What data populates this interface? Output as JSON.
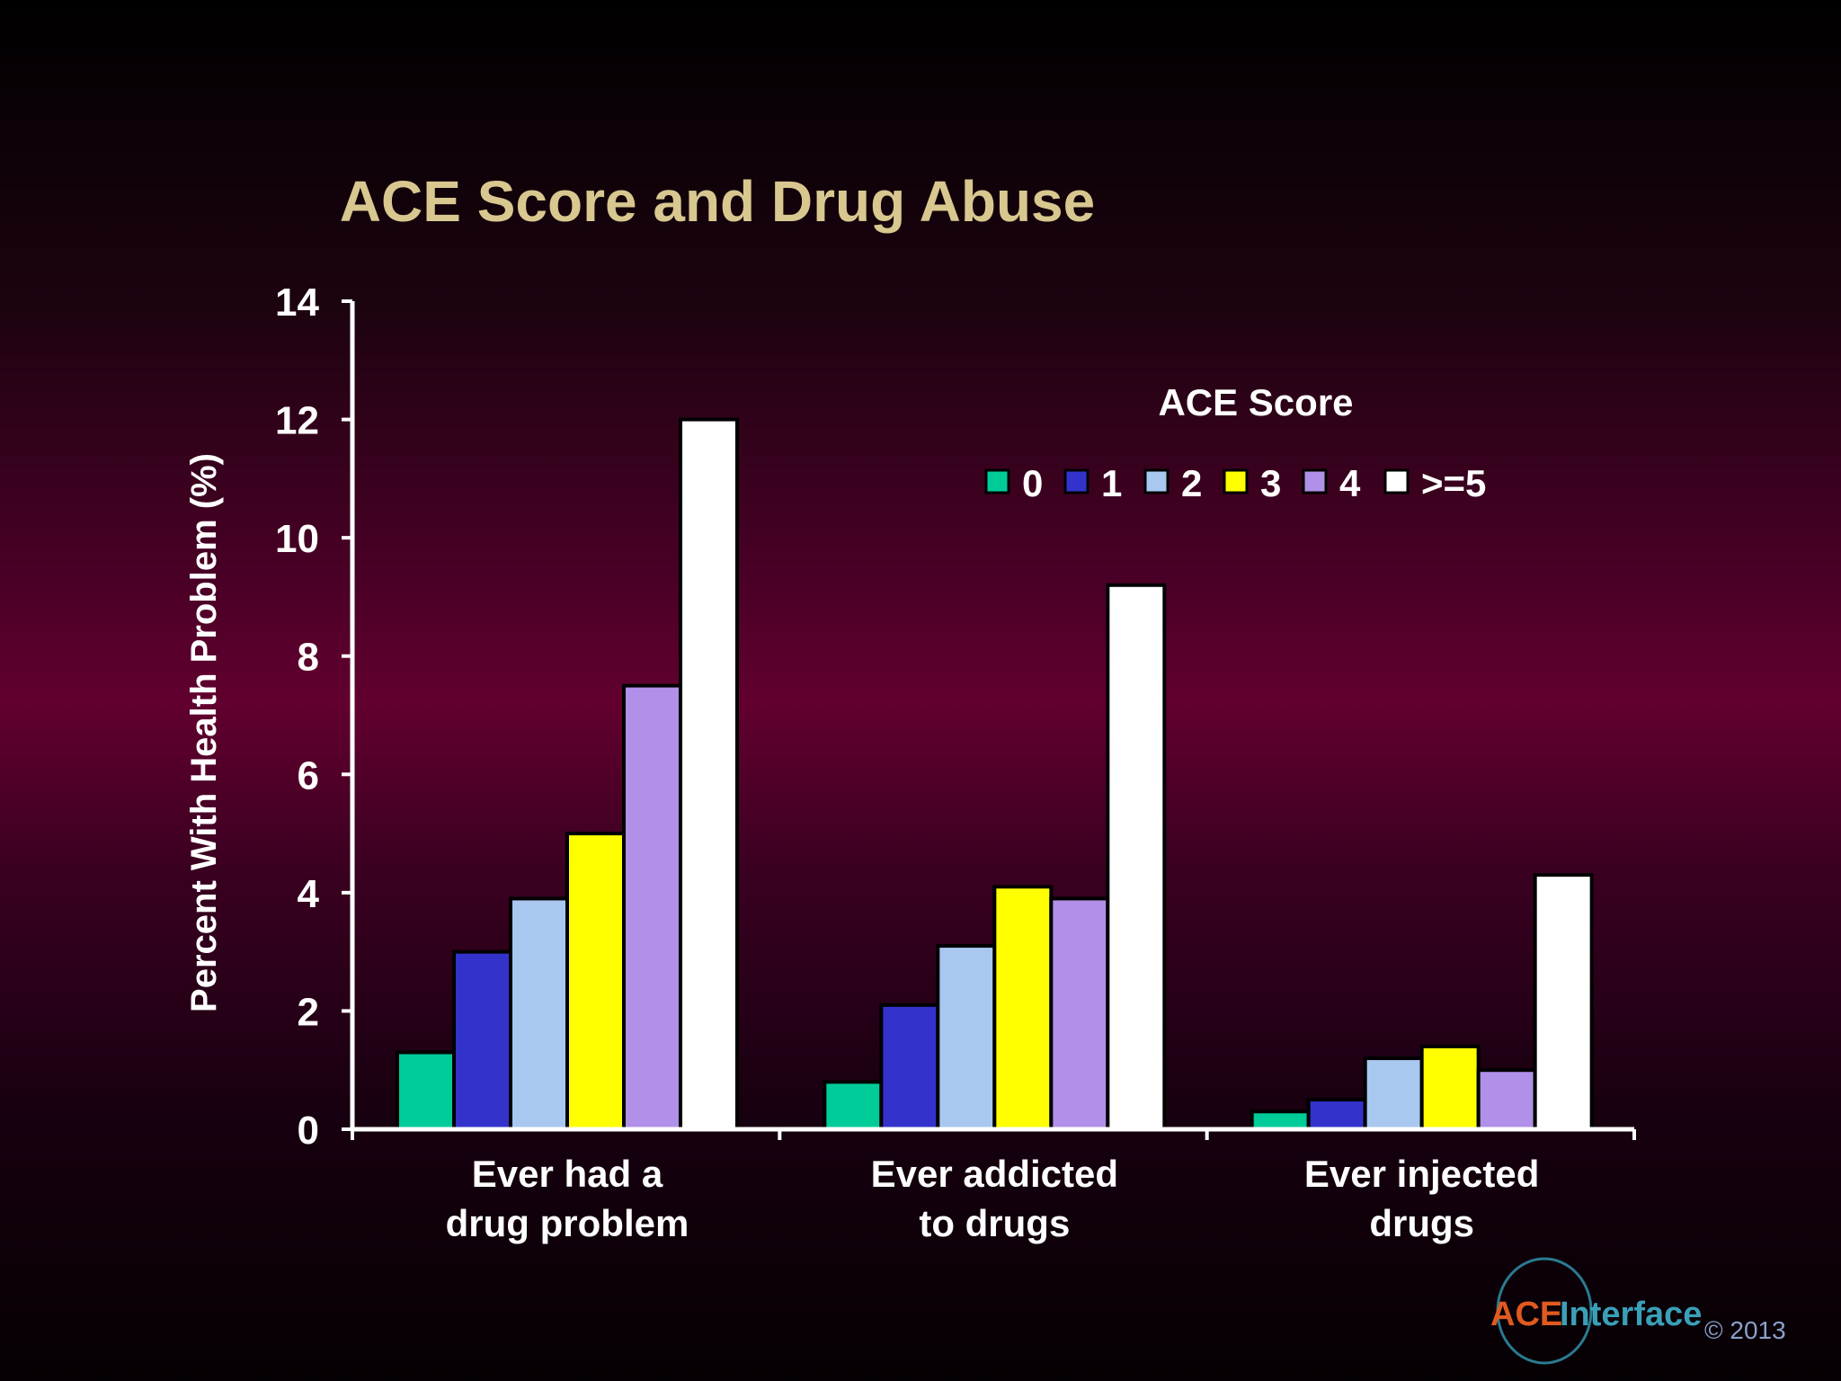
{
  "chart_data": {
    "type": "bar",
    "title": "ACE Score and Drug Abuse",
    "ylabel": "Percent With Health Problem  (%)",
    "xlabel": "",
    "ylim": [
      0,
      14
    ],
    "yticks": [
      "0",
      "2",
      "4",
      "6",
      "8",
      "10",
      "12",
      "14"
    ],
    "categories": [
      [
        "Ever had a",
        "drug problem"
      ],
      [
        "Ever addicted",
        "to drugs"
      ],
      [
        "Ever injected",
        "drugs"
      ]
    ],
    "legend_title": "ACE Score",
    "legend_placement": "top-right",
    "grid": false,
    "series": [
      {
        "name": "0",
        "color": "#00cc99",
        "values": [
          1.3,
          0.8,
          0.3
        ]
      },
      {
        "name": "1",
        "color": "#3333cc",
        "values": [
          3.0,
          2.1,
          0.5
        ]
      },
      {
        "name": "2",
        "color": "#a8c8f0",
        "values": [
          3.9,
          3.1,
          1.2
        ]
      },
      {
        "name": "3",
        "color": "#ffff00",
        "values": [
          5.0,
          4.1,
          1.4
        ]
      },
      {
        "name": "4",
        "color": "#b090e8",
        "values": [
          7.5,
          3.9,
          1.0
        ]
      },
      {
        "name": ">=5",
        "color": "#ffffff",
        "values": [
          12.0,
          9.2,
          4.3
        ]
      }
    ]
  },
  "colors": {
    "title": "#d8c890",
    "axis": "#ffffff",
    "bar_outline": "#000000"
  },
  "logo": {
    "ace": "ACE",
    "interface": "Interface",
    "copyright": "© 2013"
  }
}
